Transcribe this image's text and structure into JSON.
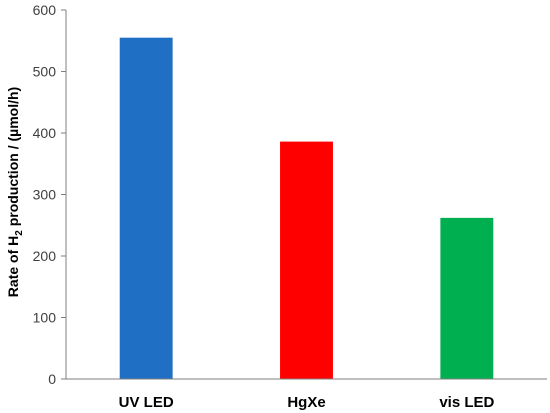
{
  "chart_data": {
    "type": "bar",
    "categories": [
      "UV LED",
      "HgXe",
      "vis LED"
    ],
    "values": [
      555,
      386,
      262
    ],
    "colors": [
      "#1f6fc5",
      "#ff0000",
      "#00b050"
    ],
    "ylabel_parts": [
      "Rate of H",
      "2",
      " production / (µmol/h)"
    ],
    "ylim": [
      0,
      600
    ],
    "yticks": [
      "0",
      "100",
      "200",
      "300",
      "400",
      "500",
      "600"
    ],
    "grid": false,
    "legend": "none"
  }
}
